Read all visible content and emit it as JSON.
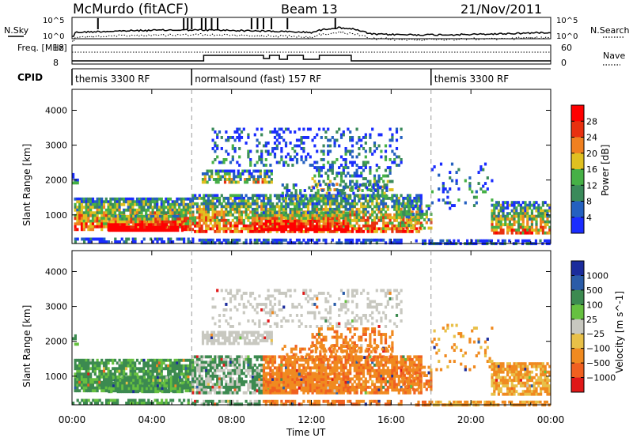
{
  "header": {
    "title": "McMurdo (fitACF)",
    "beam": "Beam 13",
    "date": "21/Nov/2011"
  },
  "chart_data": [
    {
      "type": "line",
      "panel": "noise",
      "left_label": "N.Sky",
      "right_label": "N.Search",
      "left_ticks": [
        "10^5",
        "10^0"
      ],
      "right_ticks": [
        "10^5",
        "10^0"
      ],
      "scale": "log"
    },
    {
      "type": "line",
      "panel": "frequency",
      "left_label": "Freq. [MHz]",
      "right_label": "Nave",
      "left_ticks": [
        "18",
        "8"
      ],
      "right_ticks": [
        "60",
        "0"
      ]
    },
    {
      "type": "table",
      "panel": "cpid",
      "label": "CPID",
      "segments": [
        {
          "name": "themis 3300 RF",
          "start_hour": 0,
          "end_hour": 6
        },
        {
          "name": "normalsound (fast) 157 RF",
          "start_hour": 6,
          "end_hour": 18
        },
        {
          "name": "themis 3300 RF",
          "start_hour": 18,
          "end_hour": 24
        }
      ]
    },
    {
      "type": "heatmap",
      "panel": "power",
      "ylabel": "Slant Range [km]",
      "yticks": [
        1000,
        2000,
        3000,
        4000
      ],
      "ylim": [
        180,
        4600
      ],
      "colorbar_label": "Power [dB]",
      "colorbar_ticks": [
        "4",
        "8",
        "12",
        "16",
        "20",
        "24",
        "28"
      ],
      "colorbar_colors": [
        "#1a2cff",
        "#2460c0",
        "#3a8a5a",
        "#46b046",
        "#e0c020",
        "#f08020",
        "#e83010",
        "#ff0000"
      ]
    },
    {
      "type": "heatmap",
      "panel": "velocity",
      "ylabel": "Slant Range [km]",
      "yticks": [
        1000,
        2000,
        3000,
        4000
      ],
      "ylim": [
        180,
        4600
      ],
      "colorbar_label": "Velocity [m s^-1]",
      "colorbar_ticks": [
        "1000",
        "500",
        "100",
        "25",
        "−25",
        "−100",
        "−500",
        "−1000"
      ],
      "colorbar_colors": [
        "#1b2c9c",
        "#2a5ca8",
        "#3c8a50",
        "#66c040",
        "#c8c8c0",
        "#e8c048",
        "#f08a20",
        "#f06020",
        "#e01818"
      ]
    }
  ],
  "x_axis": {
    "label": "Time UT",
    "ticks": [
      "00:00",
      "04:00",
      "08:00",
      "12:00",
      "16:00",
      "20:00",
      "00:00"
    ]
  }
}
